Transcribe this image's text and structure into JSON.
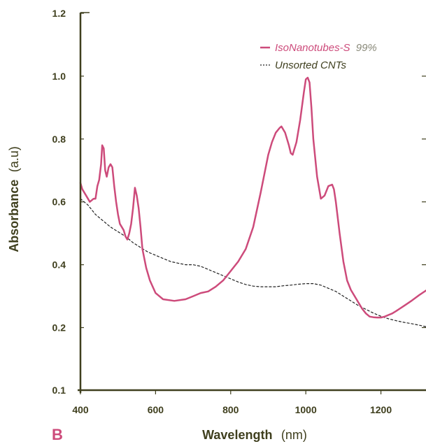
{
  "chart_data": {
    "type": "line",
    "panel_label": "B",
    "xlabel": "Wavelength",
    "xlabel_unit": "(nm)",
    "ylabel": "Absorbance",
    "ylabel_unit": "(a.u)",
    "xlim": [
      400,
      1320
    ],
    "ylim": [
      0.1,
      1.2
    ],
    "xticks": [
      400,
      600,
      800,
      1000,
      1200
    ],
    "xtick_labels": [
      "400",
      "600",
      "800",
      "1000",
      "1200"
    ],
    "yticks": [
      0.1,
      0.2,
      0.4,
      0.6,
      0.8,
      1.0,
      1.2
    ],
    "ytick_labels": [
      "0.1",
      "0.2",
      "0.4",
      "0.6",
      "0.8",
      "1.0",
      "1.2"
    ],
    "legend_position": "top-right",
    "colors": {
      "axis": "#3f3f1e",
      "series_sorted": "#cd4b7b",
      "series_unsorted": "#222222",
      "panel_label": "#cd4b7b"
    },
    "series": [
      {
        "name": "IsoNanotubes-S",
        "name_suffix": "99%",
        "style": "solid",
        "x": [
          400,
          405,
          415,
          425,
          435,
          440,
          445,
          450,
          455,
          458,
          462,
          466,
          470,
          475,
          480,
          485,
          490,
          495,
          500,
          505,
          510,
          515,
          520,
          525,
          530,
          535,
          540,
          545,
          550,
          555,
          560,
          565,
          575,
          585,
          600,
          620,
          650,
          680,
          700,
          720,
          740,
          760,
          780,
          800,
          820,
          840,
          860,
          880,
          900,
          910,
          920,
          930,
          935,
          945,
          955,
          960,
          965,
          975,
          985,
          995,
          1000,
          1005,
          1010,
          1015,
          1020,
          1030,
          1040,
          1050,
          1060,
          1070,
          1075,
          1080,
          1090,
          1100,
          1110,
          1120,
          1130,
          1140,
          1150,
          1160,
          1170,
          1180,
          1190,
          1200,
          1210,
          1220,
          1230,
          1240,
          1250,
          1260,
          1270,
          1280,
          1290,
          1300,
          1310,
          1320
        ],
        "y": [
          0.66,
          0.64,
          0.62,
          0.6,
          0.61,
          0.61,
          0.65,
          0.67,
          0.72,
          0.78,
          0.77,
          0.7,
          0.68,
          0.71,
          0.72,
          0.71,
          0.65,
          0.6,
          0.56,
          0.53,
          0.52,
          0.51,
          0.49,
          0.48,
          0.5,
          0.53,
          0.58,
          0.645,
          0.62,
          0.58,
          0.52,
          0.45,
          0.39,
          0.35,
          0.31,
          0.29,
          0.285,
          0.29,
          0.3,
          0.31,
          0.315,
          0.33,
          0.35,
          0.38,
          0.41,
          0.45,
          0.52,
          0.63,
          0.75,
          0.79,
          0.82,
          0.835,
          0.84,
          0.82,
          0.78,
          0.755,
          0.75,
          0.79,
          0.86,
          0.95,
          0.99,
          0.995,
          0.98,
          0.9,
          0.8,
          0.68,
          0.61,
          0.62,
          0.65,
          0.655,
          0.64,
          0.6,
          0.5,
          0.41,
          0.35,
          0.32,
          0.3,
          0.28,
          0.26,
          0.245,
          0.235,
          0.233,
          0.232,
          0.232,
          0.235,
          0.24,
          0.245,
          0.252,
          0.26,
          0.268,
          0.276,
          0.284,
          0.293,
          0.302,
          0.31,
          0.318
        ]
      },
      {
        "name": "Unsorted CNTs",
        "style": "dotted",
        "x": [
          400,
          420,
          440,
          460,
          480,
          500,
          520,
          540,
          560,
          580,
          600,
          620,
          640,
          660,
          680,
          700,
          720,
          740,
          760,
          780,
          800,
          820,
          840,
          860,
          880,
          900,
          920,
          940,
          960,
          980,
          1000,
          1020,
          1040,
          1060,
          1080,
          1100,
          1120,
          1140,
          1160,
          1180,
          1200,
          1220,
          1240,
          1260,
          1280,
          1300,
          1320
        ],
        "y": [
          0.61,
          0.59,
          0.56,
          0.54,
          0.52,
          0.505,
          0.49,
          0.47,
          0.455,
          0.44,
          0.43,
          0.42,
          0.41,
          0.405,
          0.4,
          0.4,
          0.395,
          0.385,
          0.375,
          0.365,
          0.355,
          0.345,
          0.337,
          0.332,
          0.33,
          0.33,
          0.33,
          0.333,
          0.335,
          0.338,
          0.34,
          0.34,
          0.335,
          0.325,
          0.315,
          0.3,
          0.285,
          0.27,
          0.258,
          0.246,
          0.236,
          0.228,
          0.222,
          0.217,
          0.213,
          0.208,
          0.203
        ]
      }
    ]
  }
}
